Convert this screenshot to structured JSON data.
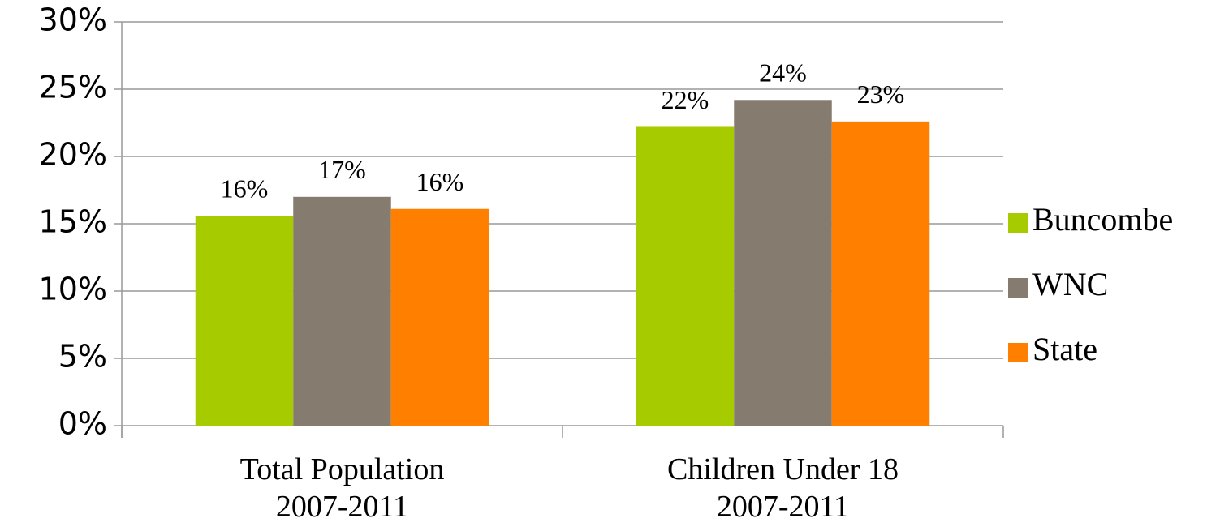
{
  "chart_data": {
    "type": "bar",
    "categories": [
      "Total Population\n2007-2011",
      "Children Under 18\n2007-2011"
    ],
    "series": [
      {
        "name": "Buncombe",
        "color": "#a6cc00",
        "values": [
          15.6,
          22.2
        ],
        "value_labels": [
          "16%",
          "22%"
        ]
      },
      {
        "name": "WNC",
        "color": "#857b6e",
        "values": [
          17.0,
          24.2
        ],
        "value_labels": [
          "17%",
          "24%"
        ]
      },
      {
        "name": "State",
        "color": "#ff7f00",
        "values": [
          16.1,
          22.6
        ],
        "value_labels": [
          "16%",
          "23%"
        ]
      }
    ],
    "ylim": [
      0,
      30
    ],
    "yticks": [
      {
        "value": 0,
        "label": "0%"
      },
      {
        "value": 5,
        "label": "5%"
      },
      {
        "value": 10,
        "label": "10%"
      },
      {
        "value": 15,
        "label": "15%"
      },
      {
        "value": 20,
        "label": "20%"
      },
      {
        "value": 25,
        "label": "25%"
      },
      {
        "value": 30,
        "label": "30%"
      }
    ],
    "grid": true,
    "legend": "right"
  }
}
